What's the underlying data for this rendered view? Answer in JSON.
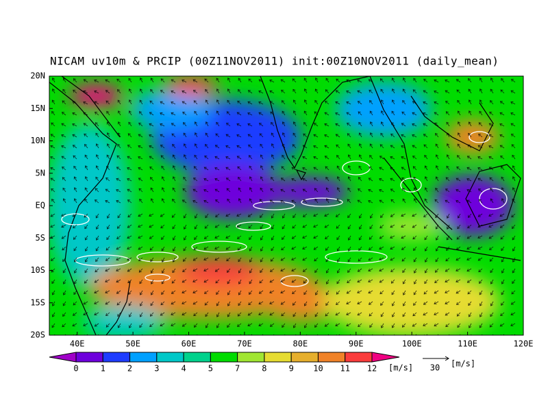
{
  "title": "NICAM uv10m & PRCIP (00Z11NOV2011) init:00Z10NOV2011 (daily_mean)",
  "lat_labels": [
    "20N",
    "15N",
    "10N",
    "5N",
    "EQ",
    "5S",
    "10S",
    "15S",
    "20S"
  ],
  "lon_labels": [
    "40E",
    "50E",
    "60E",
    "70E",
    "80E",
    "90E",
    "100E",
    "110E",
    "120E"
  ],
  "colorbar": {
    "labels": [
      0,
      1,
      2,
      3,
      4,
      5,
      7,
      8,
      9,
      10,
      11,
      12
    ],
    "colors": [
      "#a000c8",
      "#6e00dc",
      "#1e3cff",
      "#00a0ff",
      "#00c8c8",
      "#00d28c",
      "#00dc00",
      "#a0e632",
      "#e6dc32",
      "#e6af2d",
      "#f08228",
      "#fa3c3c",
      "#f00082"
    ],
    "unit": "[m/s]"
  },
  "reference_vector": {
    "label": "30",
    "unit": "[m/s]"
  }
}
